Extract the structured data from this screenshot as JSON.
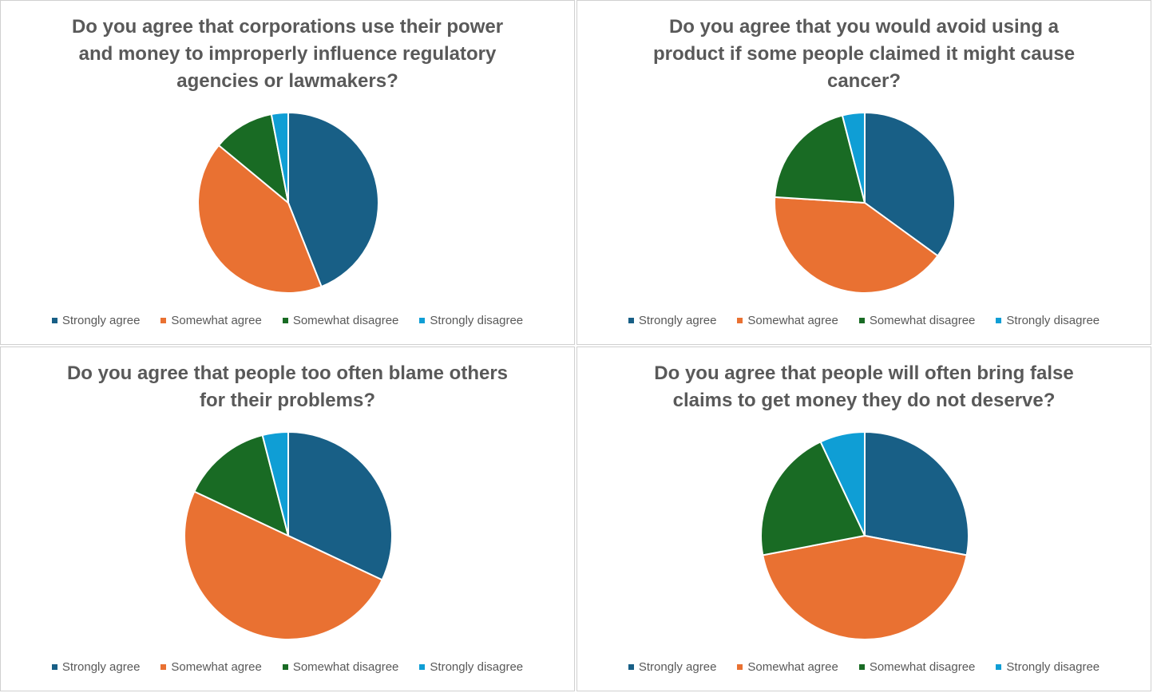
{
  "chart_data": [
    {
      "type": "pie",
      "title": "Do you agree that corporations use their power and money to improperly influence regulatory agencies or lawmakers?",
      "categories": [
        "Strongly agree",
        "Somewhat agree",
        "Somewhat disagree",
        "Strongly disagree"
      ],
      "values": [
        44,
        42,
        11,
        3
      ],
      "colors": [
        "#185f86",
        "#e97132",
        "#196b24",
        "#0f9ed5"
      ]
    },
    {
      "type": "pie",
      "title": "Do you agree that you would avoid using a product if some people claimed it might cause cancer?",
      "categories": [
        "Strongly agree",
        "Somewhat agree",
        "Somewhat disagree",
        "Strongly disagree"
      ],
      "values": [
        35,
        41,
        20,
        4
      ],
      "colors": [
        "#185f86",
        "#e97132",
        "#196b24",
        "#0f9ed5"
      ]
    },
    {
      "type": "pie",
      "title": "Do you agree that people too often blame others for their problems?",
      "categories": [
        "Strongly agree",
        "Somewhat agree",
        "Somewhat disagree",
        "Strongly disagree"
      ],
      "values": [
        32,
        50,
        14,
        4
      ],
      "colors": [
        "#185f86",
        "#e97132",
        "#196b24",
        "#0f9ed5"
      ]
    },
    {
      "type": "pie",
      "title": "Do you agree that people will often bring false claims to get money they do not deserve?",
      "categories": [
        "Strongly agree",
        "Somewhat agree",
        "Somewhat disagree",
        "Strongly disagree"
      ],
      "values": [
        28,
        44,
        21,
        7
      ],
      "colors": [
        "#185f86",
        "#e97132",
        "#196b24",
        "#0f9ed5"
      ]
    }
  ]
}
